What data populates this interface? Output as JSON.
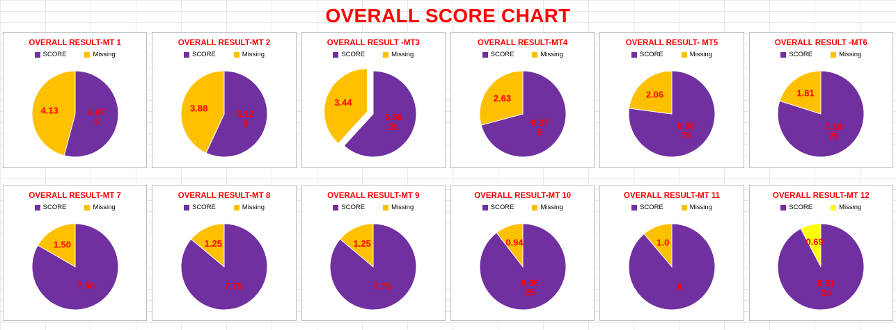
{
  "page_title": "OVERALL SCORE CHART",
  "colors": {
    "score_purple": "#7030A0",
    "missing_gold": "#FFC000",
    "missing_bright_yellow": "#FFFF00",
    "label_red": "#FF0000",
    "title_red": "#FF0000"
  },
  "chart_data": [
    {
      "type": "pie",
      "title": "OVERALL RESULT-MT 1",
      "legend": [
        "SCORE",
        "Missing"
      ],
      "series": [
        {
          "name": "SCORE",
          "value": 4.875,
          "display": [
            "4.87",
            "5"
          ],
          "color": "#7030A0"
        },
        {
          "name": "Missing",
          "value": 4.13,
          "display": [
            "4.13"
          ],
          "color": "#FFC000"
        }
      ]
    },
    {
      "type": "pie",
      "title": "OVERALL RESULT-MT 2",
      "legend": [
        "SCORE",
        "Missing"
      ],
      "series": [
        {
          "name": "SCORE",
          "value": 5.125,
          "display": [
            "5.12",
            "5"
          ],
          "color": "#7030A0"
        },
        {
          "name": "Missing",
          "value": 3.88,
          "display": [
            "3.88"
          ],
          "color": "#FFC000"
        }
      ]
    },
    {
      "type": "pie",
      "title": "OVERALL RESULT -MT3",
      "legend": [
        "SCORE",
        "Missing"
      ],
      "series": [
        {
          "name": "SCORE",
          "value": 5.5625,
          "display": [
            "5.56",
            "25"
          ],
          "color": "#7030A0"
        },
        {
          "name": "Missing",
          "value": 3.44,
          "display": [
            "3.44"
          ],
          "color": "#FFC000",
          "exploded": true
        }
      ]
    },
    {
      "type": "pie",
      "title": "OVERALL RESULT-MT4",
      "legend": [
        "SCORE",
        "Missing"
      ],
      "series": [
        {
          "name": "SCORE",
          "value": 6.375,
          "display": [
            "6.37",
            "5"
          ],
          "color": "#7030A0"
        },
        {
          "name": "Missing",
          "value": 2.63,
          "display": [
            "2.63"
          ],
          "color": "#FFC000"
        }
      ]
    },
    {
      "type": "pie",
      "title": "OVERALL RESULT- MT5",
      "legend": [
        "SCORE",
        "Missing"
      ],
      "series": [
        {
          "name": "SCORE",
          "value": 6.9375,
          "display": [
            "6.93",
            "75"
          ],
          "color": "#7030A0"
        },
        {
          "name": "Missing",
          "value": 2.06,
          "display": [
            "2.06"
          ],
          "color": "#FFC000"
        }
      ]
    },
    {
      "type": "pie",
      "title": "OVERALL RESULT -MT6",
      "legend": [
        "SCORE",
        "Missing"
      ],
      "series": [
        {
          "name": "SCORE",
          "value": 7.1875,
          "display": [
            "7.18",
            "75"
          ],
          "color": "#7030A0"
        },
        {
          "name": "Missing",
          "value": 1.81,
          "display": [
            "1.81"
          ],
          "color": "#FFC000"
        }
      ]
    },
    {
      "type": "pie",
      "title": "OVERALL RESULT-MT 7",
      "legend": [
        "SCORE",
        "Missing"
      ],
      "series": [
        {
          "name": "SCORE",
          "value": 7.5,
          "display": [
            "7.50"
          ],
          "color": "#7030A0"
        },
        {
          "name": "Missing",
          "value": 1.5,
          "display": [
            "1.50"
          ],
          "color": "#FFC000"
        }
      ]
    },
    {
      "type": "pie",
      "title": "OVERALL RESULT-MT 8",
      "legend": [
        "SCORE",
        "Missing"
      ],
      "series": [
        {
          "name": "SCORE",
          "value": 7.75,
          "display": [
            "7.75"
          ],
          "color": "#7030A0"
        },
        {
          "name": "Missing",
          "value": 1.25,
          "display": [
            "1.25"
          ],
          "color": "#FFC000"
        }
      ]
    },
    {
      "type": "pie",
      "title": "OVERALL RESULT-MT 9",
      "legend": [
        "SCORE",
        "Missing"
      ],
      "series": [
        {
          "name": "SCORE",
          "value": 7.75,
          "display": [
            "7.75"
          ],
          "color": "#7030A0"
        },
        {
          "name": "Missing",
          "value": 1.25,
          "display": [
            "1.25"
          ],
          "color": "#FFC000"
        }
      ]
    },
    {
      "type": "pie",
      "title": "OVERALL RESULT-MT 10",
      "legend": [
        "SCORE",
        "Missing"
      ],
      "series": [
        {
          "name": "SCORE",
          "value": 8.0625,
          "display": [
            "8.06",
            "25"
          ],
          "color": "#7030A0"
        },
        {
          "name": "Missing",
          "value": 0.94,
          "display": [
            "0.94"
          ],
          "color": "#FFC000"
        }
      ]
    },
    {
      "type": "pie",
      "title": "OVERALL RESULT-MT 11",
      "legend": [
        "SCORE",
        "Missing"
      ],
      "series": [
        {
          "name": "SCORE",
          "value": 8,
          "display": [
            "8"
          ],
          "color": "#7030A0"
        },
        {
          "name": "Missing",
          "value": 1.0,
          "display": [
            "1.0"
          ],
          "color": "#FFC000"
        }
      ]
    },
    {
      "type": "pie",
      "title": "OVERALL RESULT-MT 12",
      "legend": [
        "SCORE",
        "Missing"
      ],
      "series": [
        {
          "name": "SCORE",
          "value": 8.3125,
          "display": [
            "8.31",
            "25"
          ],
          "color": "#7030A0"
        },
        {
          "name": "Missing",
          "value": 0.69,
          "display": [
            "0.69"
          ],
          "color": "#FFFF00"
        }
      ]
    }
  ]
}
